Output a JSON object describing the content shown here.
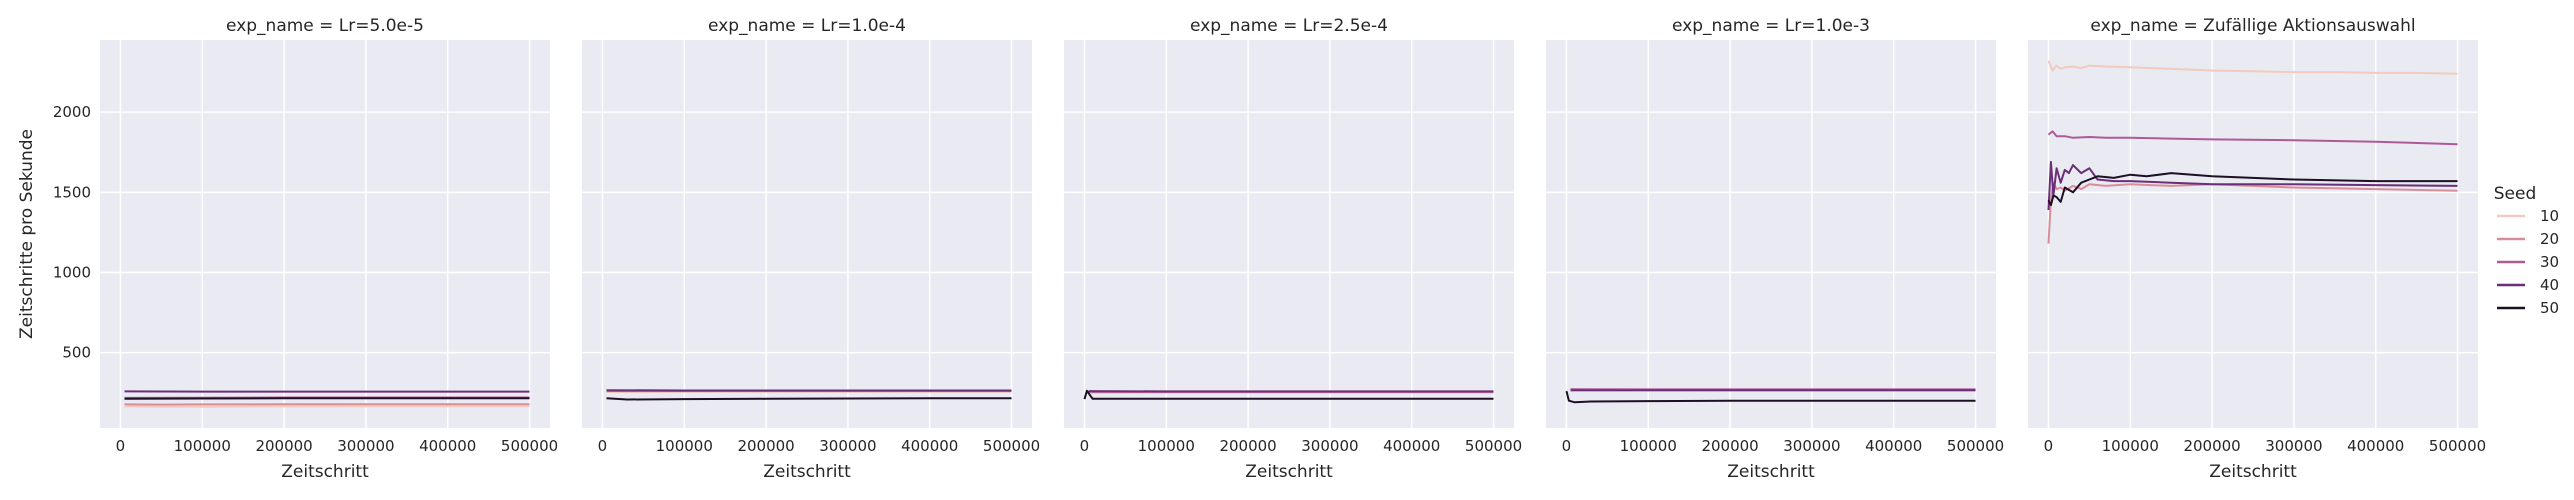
{
  "chart_data": {
    "type": "line",
    "facet_label": "exp_name",
    "xlabel": "Zeitschritt",
    "ylabel": "Zeitschritte pro Sekunde",
    "xlim": [
      -25000,
      525000
    ],
    "ylim": [
      30,
      2450
    ],
    "xticks": [
      0,
      100000,
      200000,
      300000,
      400000,
      500000
    ],
    "yticks": [
      500,
      1000,
      1500,
      2000
    ],
    "grid": true,
    "shared_y": true,
    "legend": {
      "title": "Seed",
      "placement": "right",
      "entries": [
        {
          "label": "10",
          "color": "#f1cbbd"
        },
        {
          "label": "20",
          "color": "#d98d99"
        },
        {
          "label": "30",
          "color": "#ad5a97"
        },
        {
          "label": "40",
          "color": "#6b2f78"
        },
        {
          "label": "50",
          "color": "#1d0f24"
        }
      ]
    },
    "panels": [
      {
        "title": "exp_name = Lr=5.0e-5",
        "series": [
          {
            "seed": "10",
            "x": [
              5000,
              50000,
              100000,
              200000,
              300000,
              400000,
              500000
            ],
            "y": [
              165,
              162,
              163,
              165,
              166,
              166,
              166
            ]
          },
          {
            "seed": "20",
            "x": [
              5000,
              50000,
              100000,
              200000,
              300000,
              400000,
              500000
            ],
            "y": [
              178,
              176,
              177,
              178,
              178,
              178,
              178
            ]
          },
          {
            "seed": "30",
            "x": [
              5000,
              100000,
              200000,
              300000,
              400000,
              500000
            ],
            "y": [
              218,
              219,
              220,
              220,
              220,
              220
            ]
          },
          {
            "seed": "40",
            "x": [
              5000,
              100000,
              200000,
              300000,
              400000,
              500000
            ],
            "y": [
              258,
              257,
              257,
              257,
              257,
              257
            ]
          },
          {
            "seed": "50",
            "x": [
              5000,
              100000,
              200000,
              300000,
              400000,
              500000
            ],
            "y": [
              213,
              214,
              215,
              215,
              215,
              215
            ]
          }
        ]
      },
      {
        "title": "exp_name = Lr=1.0e-4",
        "series": [
          {
            "seed": "10",
            "x": [
              5000,
              100000,
              200000,
              300000,
              400000,
              500000
            ],
            "y": [
              255,
              256,
              256,
              256,
              256,
              256
            ]
          },
          {
            "seed": "20",
            "x": [
              5000,
              100000,
              200000,
              300000,
              400000,
              500000
            ],
            "y": [
              260,
              260,
              260,
              260,
              260,
              260
            ]
          },
          {
            "seed": "30",
            "x": [
              5000,
              100000,
              200000,
              300000,
              400000,
              500000
            ],
            "y": [
              262,
              262,
              262,
              262,
              262,
              262
            ]
          },
          {
            "seed": "40",
            "x": [
              5000,
              100000,
              200000,
              300000,
              400000,
              500000
            ],
            "y": [
              266,
              264,
              264,
              264,
              264,
              264
            ]
          },
          {
            "seed": "50",
            "x": [
              5000,
              30000,
              100000,
              200000,
              300000,
              400000,
              500000
            ],
            "y": [
              215,
              208,
              210,
              212,
              214,
              215,
              216
            ]
          }
        ]
      },
      {
        "title": "exp_name = Lr=2.5e-4",
        "series": [
          {
            "seed": "10",
            "x": [
              5000,
              100000,
              200000,
              300000,
              400000,
              500000
            ],
            "y": [
              250,
              251,
              251,
              251,
              251,
              251
            ]
          },
          {
            "seed": "20",
            "x": [
              5000,
              100000,
              200000,
              300000,
              400000,
              500000
            ],
            "y": [
              254,
              254,
              254,
              254,
              254,
              254
            ]
          },
          {
            "seed": "30",
            "x": [
              5000,
              100000,
              200000,
              300000,
              400000,
              500000
            ],
            "y": [
              257,
              256,
              256,
              256,
              256,
              256
            ]
          },
          {
            "seed": "40",
            "x": [
              5000,
              100000,
              200000,
              300000,
              400000,
              500000
            ],
            "y": [
              260,
              258,
              258,
              258,
              258,
              258
            ]
          },
          {
            "seed": "50",
            "x": [
              0,
              3000,
              10000,
              100000,
              200000,
              300000,
              400000,
              500000
            ],
            "y": [
              210,
              262,
              212,
              212,
              212,
              212,
              212,
              212
            ]
          }
        ]
      },
      {
        "title": "exp_name = Lr=1.0e-3",
        "series": [
          {
            "seed": "10",
            "x": [
              5000,
              100000,
              200000,
              300000,
              400000,
              500000
            ],
            "y": [
              262,
              262,
              262,
              262,
              262,
              262
            ]
          },
          {
            "seed": "20",
            "x": [
              5000,
              100000,
              200000,
              300000,
              400000,
              500000
            ],
            "y": [
              268,
              268,
              268,
              268,
              268,
              268
            ]
          },
          {
            "seed": "30",
            "x": [
              5000,
              100000,
              200000,
              300000,
              400000,
              500000
            ],
            "y": [
              272,
              271,
              271,
              271,
              271,
              271
            ]
          },
          {
            "seed": "40",
            "x": [
              5000,
              100000,
              200000,
              300000,
              400000,
              500000
            ],
            "y": [
              265,
              265,
              265,
              265,
              265,
              265
            ]
          },
          {
            "seed": "50",
            "x": [
              0,
              3000,
              10000,
              30000,
              100000,
              200000,
              300000,
              400000,
              500000
            ],
            "y": [
              260,
              200,
              190,
              195,
              198,
              200,
              200,
              200,
              200
            ]
          }
        ]
      },
      {
        "title": "exp_name = Zufällige Aktionsauswahl",
        "series": [
          {
            "seed": "10",
            "x": [
              0,
              5000,
              10000,
              15000,
              20000,
              30000,
              40000,
              50000,
              70000,
              100000,
              150000,
              200000,
              250000,
              300000,
              350000,
              400000,
              450000,
              500000
            ],
            "y": [
              2320,
              2260,
              2290,
              2270,
              2280,
              2285,
              2275,
              2290,
              2285,
              2280,
              2270,
              2260,
              2255,
              2250,
              2250,
              2245,
              2245,
              2240
            ]
          },
          {
            "seed": "20",
            "x": [
              0,
              3000,
              6000,
              10000,
              15000,
              20000,
              30000,
              40000,
              50000,
              70000,
              100000,
              150000,
              200000,
              300000,
              400000,
              500000
            ],
            "y": [
              1180,
              1450,
              1560,
              1520,
              1530,
              1510,
              1540,
              1520,
              1550,
              1540,
              1550,
              1540,
              1550,
              1530,
              1520,
              1510
            ]
          },
          {
            "seed": "30",
            "x": [
              0,
              5000,
              10000,
              20000,
              30000,
              50000,
              70000,
              100000,
              150000,
              200000,
              300000,
              400000,
              500000
            ],
            "y": [
              1860,
              1880,
              1850,
              1850,
              1840,
              1845,
              1840,
              1840,
              1835,
              1830,
              1825,
              1815,
              1800
            ]
          },
          {
            "seed": "40",
            "x": [
              0,
              3000,
              6000,
              10000,
              15000,
              20000,
              25000,
              30000,
              40000,
              50000,
              60000,
              80000,
              100000,
              150000,
              200000,
              300000,
              400000,
              500000
            ],
            "y": [
              1390,
              1690,
              1480,
              1650,
              1560,
              1640,
              1620,
              1670,
              1620,
              1650,
              1580,
              1570,
              1570,
              1560,
              1550,
              1550,
              1545,
              1540
            ]
          },
          {
            "seed": "50",
            "x": [
              0,
              3000,
              6000,
              10000,
              15000,
              20000,
              30000,
              40000,
              50000,
              60000,
              80000,
              100000,
              120000,
              150000,
              200000,
              250000,
              300000,
              400000,
              500000
            ],
            "y": [
              1450,
              1420,
              1480,
              1470,
              1440,
              1530,
              1500,
              1560,
              1580,
              1600,
              1590,
              1610,
              1600,
              1620,
              1600,
              1590,
              1580,
              1570,
              1570
            ]
          }
        ]
      }
    ]
  }
}
